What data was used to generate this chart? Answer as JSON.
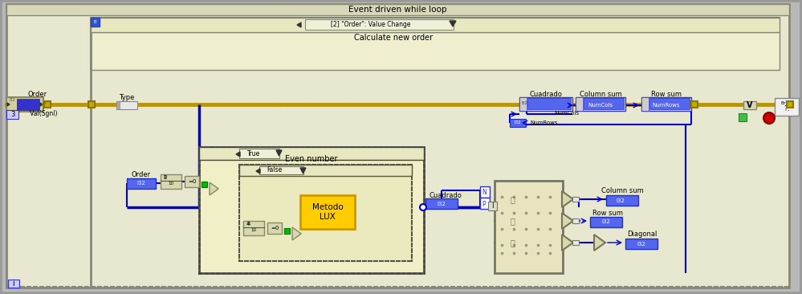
{
  "bg_color": "#b8b8b8",
  "outer_bg": "#e8e8d0",
  "event_loop_label": "Event driven while loop",
  "event_case_label": "[2] \"Order\": Value Change",
  "event_case_sublabel": "Calculate new order",
  "wire_yellow": "#8a7a00",
  "wire_blue": "#0000cc",
  "label_order_top": "Order",
  "label_type": "Type",
  "label_cuadrado_top": "Cuadrado",
  "label_col_sum_top": "Column sum",
  "label_row_sum_top": "Row sum",
  "label_order_mid": "Order",
  "label_even": "Even number",
  "label_metodo": "Metodo\nLUX",
  "label_cuadrado_mid": "Cuadrado",
  "label_col_sum_bot": "Column sum",
  "label_row_sum_bot": "Row sum",
  "label_diagonal": "Diagonal",
  "box_blue_fc": "#5555ee",
  "box_blue_ec": "#0000aa",
  "inner_tan": "#f0efcf",
  "inner_case_tan": "#f5f0d0",
  "metodo_color": "#ffcc00",
  "font_size": 6.5
}
